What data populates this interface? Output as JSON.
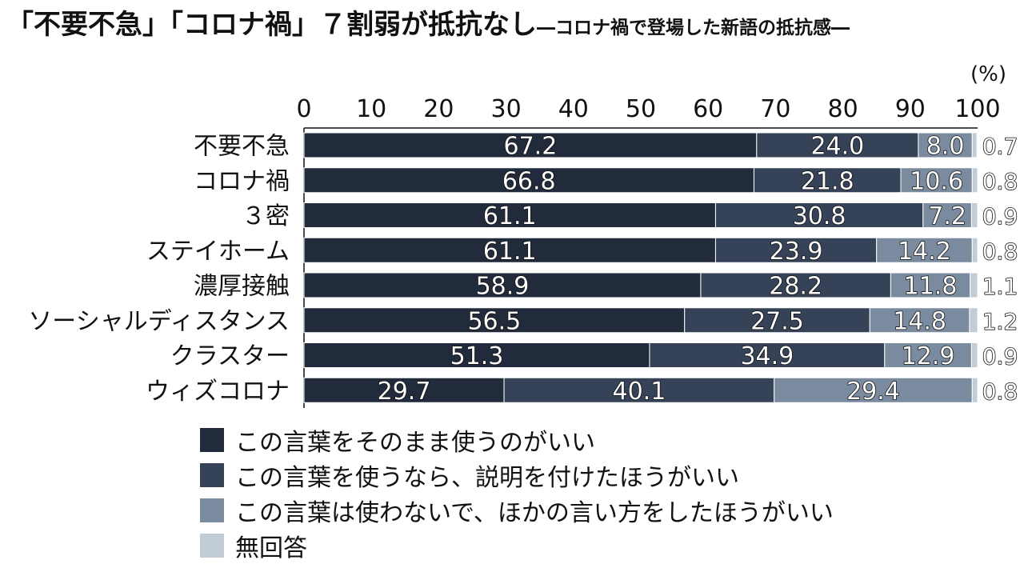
{
  "chart_data": {
    "type": "bar",
    "orientation": "horizontal",
    "stacked": true,
    "title_main": "「不要不急」「コロナ禍」７割弱が抵抗なし",
    "title_sub": "―コロナ禍で登場した新語の抵抗感―",
    "unit": "(%)",
    "xlim": [
      0,
      100
    ],
    "x_ticks": [
      0,
      10,
      20,
      30,
      40,
      50,
      60,
      70,
      80,
      90,
      100
    ],
    "categories": [
      "不要不急",
      "コロナ禍",
      "３密",
      "ステイホーム",
      "濃厚接触",
      "ソーシャルディスタンス",
      "クラスター",
      "ウィズコロナ"
    ],
    "series": [
      {
        "name": "この言葉をそのまま使うのがいい",
        "color": "#222b3c",
        "values": [
          67.2,
          66.8,
          61.1,
          61.1,
          58.9,
          56.5,
          51.3,
          29.7
        ]
      },
      {
        "name": "この言葉を使うなら、説明を付けたほうがいい",
        "color": "#364257",
        "values": [
          24.0,
          21.8,
          30.8,
          23.9,
          28.2,
          27.5,
          34.9,
          40.1
        ]
      },
      {
        "name": "この言葉は使わないで、ほかの言い方をしたほうがいい",
        "color": "#7a8ba0",
        "values": [
          8.0,
          10.6,
          7.2,
          14.2,
          11.8,
          14.8,
          12.9,
          29.4
        ]
      },
      {
        "name": "無回答",
        "color": "#c2ccd6",
        "values": [
          0.7,
          0.8,
          0.9,
          0.8,
          1.1,
          1.2,
          0.9,
          0.8
        ]
      }
    ],
    "legend_position": "bottom-left"
  }
}
